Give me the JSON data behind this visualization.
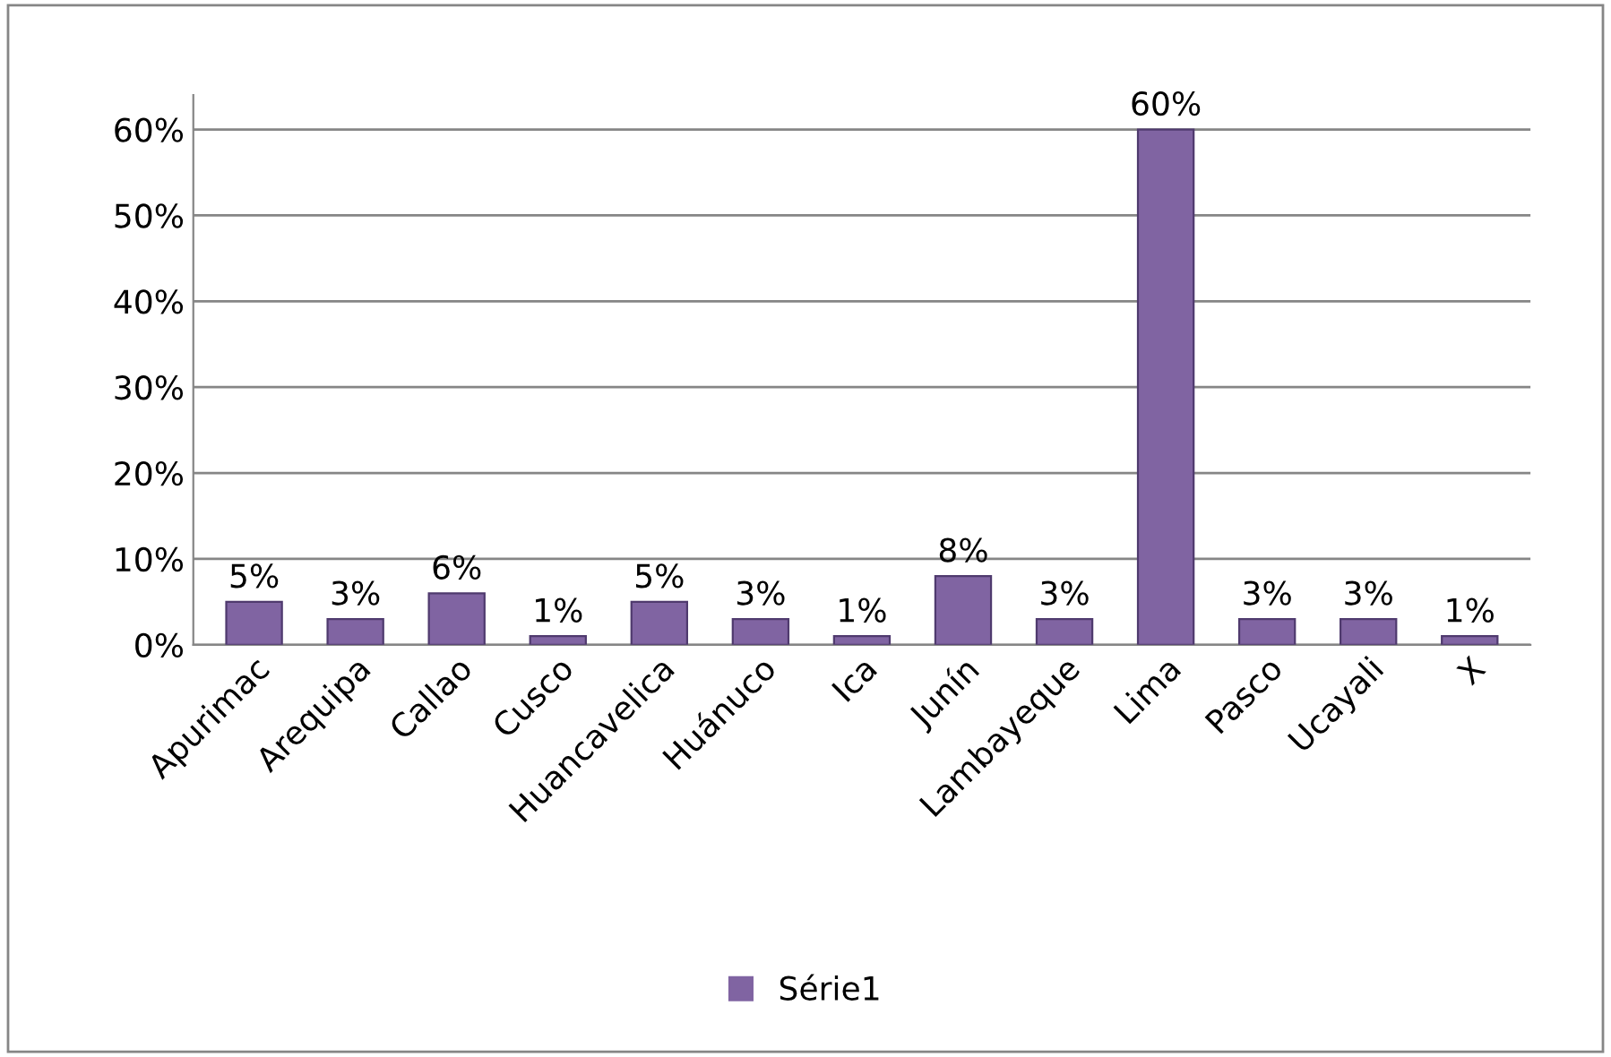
{
  "chart_data": {
    "type": "bar",
    "categories": [
      "Apurimac",
      "Arequipa",
      "Callao",
      "Cusco",
      "Huancavelica",
      "Huánuco",
      "Ica",
      "Junín",
      "Lambayeque",
      "Lima",
      "Pasco",
      "Ucayali",
      "X"
    ],
    "series": [
      {
        "name": "Série1",
        "color": "#8064a2",
        "values": [
          5,
          3,
          6,
          1,
          5,
          3,
          1,
          8,
          3,
          60,
          3,
          3,
          1
        ],
        "value_labels": [
          "5%",
          "3%",
          "6%",
          "1%",
          "5%",
          "3%",
          "1%",
          "8%",
          "3%",
          "60%",
          "3%",
          "3%",
          "1%"
        ]
      }
    ],
    "ylim": [
      0,
      64
    ],
    "yticks": [
      {
        "value": 0,
        "label": "0%"
      },
      {
        "value": 10,
        "label": "10%"
      },
      {
        "value": 20,
        "label": "20%"
      },
      {
        "value": 30,
        "label": "30%"
      },
      {
        "value": 40,
        "label": "40%"
      },
      {
        "value": 50,
        "label": "50%"
      },
      {
        "value": 60,
        "label": "60%"
      }
    ],
    "grid": "y",
    "legend": "bottom"
  }
}
